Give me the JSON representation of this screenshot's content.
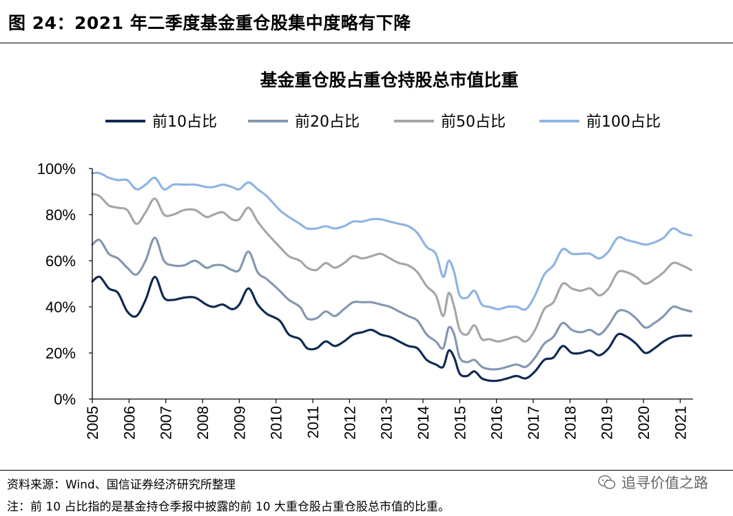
{
  "figure": {
    "title": "图 24：2021 年二季度基金重仓股集中度略有下降",
    "source": "资料来源：Wind、国信证券经济研究所整理",
    "note": "注：前 10 占比指的是基金持仓季报中披露的前 10 大重仓股占重仓股总市值的比重。",
    "watermark": "追寻价值之路"
  },
  "chart_data": {
    "type": "line",
    "title": "基金重仓股占重仓持股总市值比重",
    "xlabel": "",
    "ylabel": "",
    "xlim": [
      2005,
      2021.35
    ],
    "ylim": [
      0,
      1
    ],
    "x_ticks": [
      "2005",
      "2006",
      "2007",
      "2008",
      "2009",
      "2010",
      "2011",
      "2012",
      "2013",
      "2014",
      "2015",
      "2016",
      "2017",
      "2018",
      "2019",
      "2020",
      "2021"
    ],
    "y_ticks": [
      "0%",
      "20%",
      "40%",
      "60%",
      "80%",
      "100%"
    ],
    "grid": false,
    "legend_position": "top",
    "series": [
      {
        "name": "前10占比",
        "color": "#0f2a52",
        "points": [
          [
            2005.0,
            0.51
          ],
          [
            2005.2,
            0.53
          ],
          [
            2005.45,
            0.48
          ],
          [
            2005.7,
            0.46
          ],
          [
            2005.95,
            0.38
          ],
          [
            2006.2,
            0.36
          ],
          [
            2006.45,
            0.43
          ],
          [
            2006.7,
            0.53
          ],
          [
            2006.95,
            0.44
          ],
          [
            2007.2,
            0.43
          ],
          [
            2007.5,
            0.44
          ],
          [
            2007.8,
            0.44
          ],
          [
            2008.1,
            0.41
          ],
          [
            2008.3,
            0.4
          ],
          [
            2008.55,
            0.41
          ],
          [
            2008.8,
            0.39
          ],
          [
            2009.0,
            0.41
          ],
          [
            2009.25,
            0.48
          ],
          [
            2009.5,
            0.41
          ],
          [
            2009.75,
            0.37
          ],
          [
            2010.1,
            0.34
          ],
          [
            2010.35,
            0.28
          ],
          [
            2010.65,
            0.26
          ],
          [
            2010.85,
            0.22
          ],
          [
            2011.1,
            0.22
          ],
          [
            2011.35,
            0.25
          ],
          [
            2011.6,
            0.23
          ],
          [
            2011.85,
            0.25
          ],
          [
            2012.1,
            0.28
          ],
          [
            2012.35,
            0.29
          ],
          [
            2012.6,
            0.3
          ],
          [
            2012.85,
            0.28
          ],
          [
            2013.1,
            0.27
          ],
          [
            2013.35,
            0.25
          ],
          [
            2013.6,
            0.23
          ],
          [
            2013.85,
            0.22
          ],
          [
            2014.1,
            0.17
          ],
          [
            2014.35,
            0.15
          ],
          [
            2014.55,
            0.14
          ],
          [
            2014.7,
            0.21
          ],
          [
            2014.85,
            0.18
          ],
          [
            2015.0,
            0.11
          ],
          [
            2015.2,
            0.1
          ],
          [
            2015.4,
            0.12
          ],
          [
            2015.6,
            0.09
          ],
          [
            2015.8,
            0.08
          ],
          [
            2016.05,
            0.08
          ],
          [
            2016.3,
            0.09
          ],
          [
            2016.55,
            0.1
          ],
          [
            2016.8,
            0.09
          ],
          [
            2017.05,
            0.12
          ],
          [
            2017.3,
            0.17
          ],
          [
            2017.55,
            0.18
          ],
          [
            2017.8,
            0.23
          ],
          [
            2018.05,
            0.2
          ],
          [
            2018.3,
            0.2
          ],
          [
            2018.55,
            0.21
          ],
          [
            2018.8,
            0.19
          ],
          [
            2019.05,
            0.22
          ],
          [
            2019.3,
            0.28
          ],
          [
            2019.55,
            0.27
          ],
          [
            2019.8,
            0.24
          ],
          [
            2020.05,
            0.2
          ],
          [
            2020.3,
            0.22
          ],
          [
            2020.55,
            0.25
          ],
          [
            2020.8,
            0.27
          ],
          [
            2021.05,
            0.275
          ],
          [
            2021.3,
            0.275
          ]
        ]
      },
      {
        "name": "前20占比",
        "color": "#8497b0",
        "points": [
          [
            2005.0,
            0.67
          ],
          [
            2005.2,
            0.69
          ],
          [
            2005.45,
            0.63
          ],
          [
            2005.7,
            0.61
          ],
          [
            2005.95,
            0.57
          ],
          [
            2006.2,
            0.54
          ],
          [
            2006.45,
            0.6
          ],
          [
            2006.7,
            0.7
          ],
          [
            2006.95,
            0.6
          ],
          [
            2007.2,
            0.58
          ],
          [
            2007.5,
            0.58
          ],
          [
            2007.8,
            0.6
          ],
          [
            2008.1,
            0.57
          ],
          [
            2008.3,
            0.58
          ],
          [
            2008.55,
            0.58
          ],
          [
            2008.8,
            0.56
          ],
          [
            2009.0,
            0.56
          ],
          [
            2009.25,
            0.64
          ],
          [
            2009.5,
            0.55
          ],
          [
            2009.75,
            0.52
          ],
          [
            2010.1,
            0.47
          ],
          [
            2010.35,
            0.43
          ],
          [
            2010.65,
            0.4
          ],
          [
            2010.85,
            0.35
          ],
          [
            2011.1,
            0.35
          ],
          [
            2011.35,
            0.38
          ],
          [
            2011.6,
            0.36
          ],
          [
            2011.85,
            0.39
          ],
          [
            2012.1,
            0.42
          ],
          [
            2012.35,
            0.42
          ],
          [
            2012.6,
            0.42
          ],
          [
            2012.85,
            0.41
          ],
          [
            2013.1,
            0.4
          ],
          [
            2013.35,
            0.38
          ],
          [
            2013.6,
            0.36
          ],
          [
            2013.85,
            0.34
          ],
          [
            2014.1,
            0.28
          ],
          [
            2014.35,
            0.25
          ],
          [
            2014.55,
            0.22
          ],
          [
            2014.7,
            0.31
          ],
          [
            2014.85,
            0.28
          ],
          [
            2015.0,
            0.18
          ],
          [
            2015.2,
            0.16
          ],
          [
            2015.4,
            0.17
          ],
          [
            2015.6,
            0.14
          ],
          [
            2015.8,
            0.13
          ],
          [
            2016.05,
            0.13
          ],
          [
            2016.3,
            0.14
          ],
          [
            2016.55,
            0.15
          ],
          [
            2016.8,
            0.14
          ],
          [
            2017.05,
            0.18
          ],
          [
            2017.3,
            0.24
          ],
          [
            2017.55,
            0.27
          ],
          [
            2017.8,
            0.33
          ],
          [
            2018.05,
            0.3
          ],
          [
            2018.3,
            0.29
          ],
          [
            2018.55,
            0.3
          ],
          [
            2018.8,
            0.28
          ],
          [
            2019.05,
            0.32
          ],
          [
            2019.3,
            0.38
          ],
          [
            2019.55,
            0.38
          ],
          [
            2019.8,
            0.35
          ],
          [
            2020.05,
            0.31
          ],
          [
            2020.3,
            0.33
          ],
          [
            2020.55,
            0.36
          ],
          [
            2020.8,
            0.4
          ],
          [
            2021.05,
            0.39
          ],
          [
            2021.3,
            0.38
          ]
        ]
      },
      {
        "name": "前50占比",
        "color": "#a6a6a6",
        "points": [
          [
            2005.0,
            0.89
          ],
          [
            2005.2,
            0.88
          ],
          [
            2005.45,
            0.84
          ],
          [
            2005.7,
            0.83
          ],
          [
            2005.95,
            0.82
          ],
          [
            2006.2,
            0.76
          ],
          [
            2006.45,
            0.81
          ],
          [
            2006.7,
            0.87
          ],
          [
            2006.95,
            0.8
          ],
          [
            2007.2,
            0.8
          ],
          [
            2007.5,
            0.82
          ],
          [
            2007.8,
            0.82
          ],
          [
            2008.1,
            0.79
          ],
          [
            2008.3,
            0.8
          ],
          [
            2008.55,
            0.81
          ],
          [
            2008.8,
            0.78
          ],
          [
            2009.0,
            0.78
          ],
          [
            2009.25,
            0.83
          ],
          [
            2009.5,
            0.77
          ],
          [
            2009.75,
            0.72
          ],
          [
            2010.1,
            0.66
          ],
          [
            2010.35,
            0.62
          ],
          [
            2010.65,
            0.6
          ],
          [
            2010.85,
            0.57
          ],
          [
            2011.1,
            0.56
          ],
          [
            2011.35,
            0.59
          ],
          [
            2011.6,
            0.57
          ],
          [
            2011.85,
            0.59
          ],
          [
            2012.1,
            0.62
          ],
          [
            2012.35,
            0.61
          ],
          [
            2012.6,
            0.62
          ],
          [
            2012.85,
            0.63
          ],
          [
            2013.1,
            0.61
          ],
          [
            2013.35,
            0.59
          ],
          [
            2013.6,
            0.58
          ],
          [
            2013.85,
            0.55
          ],
          [
            2014.1,
            0.49
          ],
          [
            2014.35,
            0.45
          ],
          [
            2014.55,
            0.36
          ],
          [
            2014.7,
            0.46
          ],
          [
            2014.85,
            0.4
          ],
          [
            2015.0,
            0.3
          ],
          [
            2015.2,
            0.28
          ],
          [
            2015.4,
            0.32
          ],
          [
            2015.6,
            0.26
          ],
          [
            2015.8,
            0.26
          ],
          [
            2016.05,
            0.25
          ],
          [
            2016.3,
            0.26
          ],
          [
            2016.55,
            0.27
          ],
          [
            2016.8,
            0.25
          ],
          [
            2017.05,
            0.3
          ],
          [
            2017.3,
            0.39
          ],
          [
            2017.55,
            0.42
          ],
          [
            2017.8,
            0.5
          ],
          [
            2018.05,
            0.48
          ],
          [
            2018.3,
            0.47
          ],
          [
            2018.55,
            0.48
          ],
          [
            2018.8,
            0.45
          ],
          [
            2019.05,
            0.48
          ],
          [
            2019.3,
            0.55
          ],
          [
            2019.55,
            0.55
          ],
          [
            2019.8,
            0.53
          ],
          [
            2020.05,
            0.5
          ],
          [
            2020.3,
            0.52
          ],
          [
            2020.55,
            0.55
          ],
          [
            2020.8,
            0.59
          ],
          [
            2021.05,
            0.58
          ],
          [
            2021.3,
            0.56
          ]
        ]
      },
      {
        "name": "前100占比",
        "color": "#8eb4e3",
        "points": [
          [
            2005.0,
            0.98
          ],
          [
            2005.2,
            0.98
          ],
          [
            2005.45,
            0.96
          ],
          [
            2005.7,
            0.95
          ],
          [
            2005.95,
            0.95
          ],
          [
            2006.2,
            0.91
          ],
          [
            2006.45,
            0.93
          ],
          [
            2006.7,
            0.96
          ],
          [
            2006.95,
            0.91
          ],
          [
            2007.2,
            0.93
          ],
          [
            2007.5,
            0.93
          ],
          [
            2007.8,
            0.93
          ],
          [
            2008.1,
            0.92
          ],
          [
            2008.3,
            0.92
          ],
          [
            2008.55,
            0.93
          ],
          [
            2008.8,
            0.92
          ],
          [
            2009.0,
            0.91
          ],
          [
            2009.25,
            0.94
          ],
          [
            2009.5,
            0.91
          ],
          [
            2009.75,
            0.88
          ],
          [
            2010.1,
            0.82
          ],
          [
            2010.35,
            0.79
          ],
          [
            2010.65,
            0.76
          ],
          [
            2010.85,
            0.74
          ],
          [
            2011.1,
            0.74
          ],
          [
            2011.35,
            0.75
          ],
          [
            2011.6,
            0.74
          ],
          [
            2011.85,
            0.75
          ],
          [
            2012.1,
            0.77
          ],
          [
            2012.35,
            0.77
          ],
          [
            2012.6,
            0.78
          ],
          [
            2012.85,
            0.78
          ],
          [
            2013.1,
            0.77
          ],
          [
            2013.35,
            0.76
          ],
          [
            2013.6,
            0.75
          ],
          [
            2013.85,
            0.72
          ],
          [
            2014.1,
            0.66
          ],
          [
            2014.35,
            0.63
          ],
          [
            2014.55,
            0.53
          ],
          [
            2014.7,
            0.6
          ],
          [
            2014.85,
            0.55
          ],
          [
            2015.0,
            0.45
          ],
          [
            2015.2,
            0.44
          ],
          [
            2015.4,
            0.47
          ],
          [
            2015.6,
            0.41
          ],
          [
            2015.8,
            0.4
          ],
          [
            2016.05,
            0.39
          ],
          [
            2016.3,
            0.4
          ],
          [
            2016.55,
            0.4
          ],
          [
            2016.8,
            0.39
          ],
          [
            2017.05,
            0.45
          ],
          [
            2017.3,
            0.54
          ],
          [
            2017.55,
            0.58
          ],
          [
            2017.8,
            0.65
          ],
          [
            2018.05,
            0.63
          ],
          [
            2018.3,
            0.63
          ],
          [
            2018.55,
            0.63
          ],
          [
            2018.8,
            0.61
          ],
          [
            2019.05,
            0.64
          ],
          [
            2019.3,
            0.7
          ],
          [
            2019.55,
            0.69
          ],
          [
            2019.8,
            0.68
          ],
          [
            2020.05,
            0.67
          ],
          [
            2020.3,
            0.68
          ],
          [
            2020.55,
            0.7
          ],
          [
            2020.8,
            0.74
          ],
          [
            2021.05,
            0.72
          ],
          [
            2021.3,
            0.71
          ]
        ]
      }
    ]
  }
}
